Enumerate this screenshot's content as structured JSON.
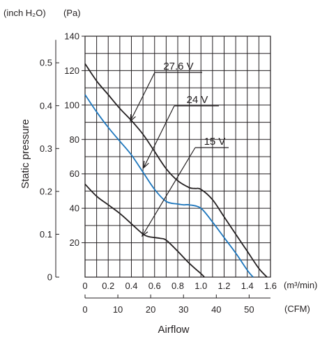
{
  "chart_data": {
    "type": "line",
    "ylabel": "Static pressure",
    "xlabel": "Airflow",
    "y_units": {
      "left": "(inch H₂O)",
      "right": "(Pa)"
    },
    "x_units": {
      "top": "(m³/min)",
      "bottom": "(CFM)"
    },
    "y_pa_ticks": [
      20,
      40,
      60,
      80,
      100,
      120,
      140
    ],
    "y_inch_ticks": [
      "0",
      "0.1",
      "0.2",
      "0.3",
      "0.4",
      "0.5"
    ],
    "x_m3_ticks": [
      "0",
      "0.2",
      "0.4",
      "0.6",
      "0.8",
      "1.0",
      "1.2",
      "1.4",
      "1.6"
    ],
    "x_cfm_ticks": [
      "0",
      "10",
      "20",
      "30",
      "40",
      "50"
    ],
    "xlim_m3min": [
      0,
      1.6
    ],
    "ylim_pa": [
      0,
      140
    ],
    "grid": true,
    "series": [
      {
        "name": "27.6 V",
        "color": "#231f20",
        "x": [
          0,
          0.1,
          0.2,
          0.3,
          0.4,
          0.5,
          0.6,
          0.7,
          0.8,
          0.9,
          0.95,
          1.0,
          1.1,
          1.2,
          1.3,
          1.4,
          1.5,
          1.57
        ],
        "y": [
          124,
          114,
          106,
          98,
          91,
          83,
          73,
          63,
          56,
          52,
          51.5,
          51,
          45,
          35,
          25,
          15,
          5,
          0
        ]
      },
      {
        "name": "24 V",
        "color": "#1b75bc",
        "x": [
          0,
          0.1,
          0.2,
          0.3,
          0.4,
          0.5,
          0.6,
          0.7,
          0.8,
          0.85,
          0.9,
          1.0,
          1.1,
          1.2,
          1.3,
          1.4,
          1.45
        ],
        "y": [
          106,
          96,
          87,
          79,
          71,
          61,
          51,
          44,
          42.5,
          42,
          42,
          40,
          32,
          23,
          14,
          4,
          0
        ]
      },
      {
        "name": "15 V",
        "color": "#231f20",
        "x": [
          0,
          0.1,
          0.2,
          0.3,
          0.4,
          0.5,
          0.55,
          0.6,
          0.65,
          0.7,
          0.8,
          0.9,
          1.0,
          1.03
        ],
        "y": [
          54,
          47,
          42,
          37,
          31,
          25,
          23.5,
          23,
          22.5,
          21.5,
          15,
          8,
          2,
          0
        ]
      }
    ],
    "annotations": [
      {
        "text": "27.6 V",
        "series": "27.6 V"
      },
      {
        "text": "24 V",
        "series": "24 V"
      },
      {
        "text": "15 V",
        "series": "15 V"
      }
    ]
  }
}
